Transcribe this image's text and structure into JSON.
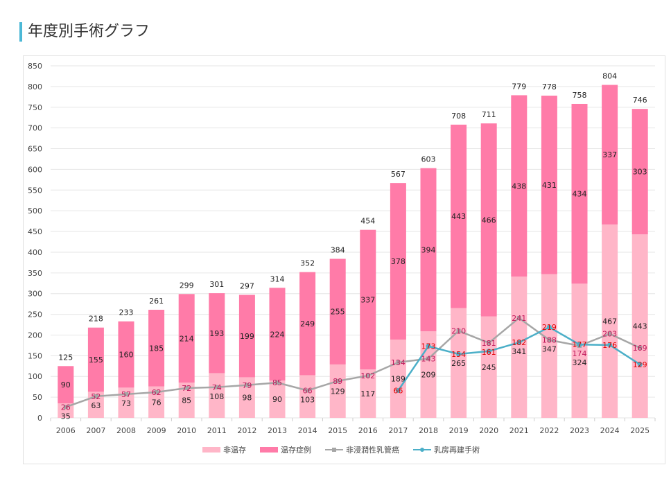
{
  "page_title": "年度別手術グラフ",
  "chart_data": {
    "type": "bar",
    "stacked": true,
    "categories": [
      "2006",
      "2007",
      "2008",
      "2009",
      "2010",
      "2011",
      "2012",
      "2013",
      "2014",
      "2015",
      "2016",
      "2017",
      "2018",
      "2019",
      "2020",
      "2021",
      "2022",
      "2023",
      "2024",
      "2025"
    ],
    "ylim": [
      0,
      850
    ],
    "yticks": [
      0,
      50,
      100,
      150,
      200,
      250,
      300,
      350,
      400,
      450,
      500,
      550,
      600,
      650,
      700,
      750,
      800,
      850
    ],
    "grid": true,
    "legend_position": "bottom",
    "totals": [
      125,
      218,
      233,
      261,
      299,
      301,
      297,
      314,
      352,
      384,
      454,
      567,
      603,
      708,
      711,
      779,
      778,
      758,
      804,
      746
    ],
    "series": [
      {
        "name": "非温存",
        "type": "bar",
        "color": "#ffb6c8",
        "values": [
          35,
          63,
          73,
          76,
          85,
          108,
          98,
          90,
          103,
          129,
          117,
          189,
          209,
          265,
          245,
          341,
          347,
          324,
          467,
          443
        ]
      },
      {
        "name": "温存症例",
        "type": "bar",
        "color": "#ff7ba8",
        "values": [
          90,
          155,
          160,
          185,
          214,
          193,
          199,
          224,
          249,
          255,
          337,
          378,
          394,
          443,
          466,
          438,
          431,
          434,
          337,
          303
        ]
      },
      {
        "name": "非浸潤性乳管癌",
        "type": "line",
        "color": "#a6a6a6",
        "label_color": "#c0185a",
        "values": [
          26,
          52,
          57,
          62,
          72,
          74,
          79,
          85,
          66,
          89,
          102,
          134,
          143,
          210,
          181,
          241,
          188,
          174,
          203,
          169
        ]
      },
      {
        "name": "乳房再建手術",
        "type": "line",
        "color": "#4bafc8",
        "label_color": "#e00000",
        "values": [
          null,
          null,
          null,
          null,
          null,
          null,
          null,
          null,
          null,
          null,
          null,
          66,
          173,
          154,
          161,
          182,
          219,
          177,
          176,
          129
        ]
      }
    ]
  }
}
